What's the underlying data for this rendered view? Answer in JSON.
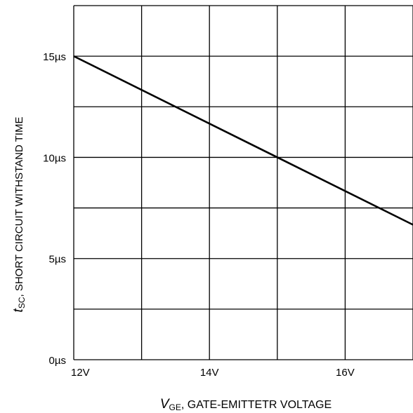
{
  "chart_data": {
    "type": "line",
    "x_axis": {
      "label_var": "V",
      "label_sub": "GE",
      "label_text": ", GATE-EMITTETR VOLTAGE",
      "range": [
        12,
        17
      ],
      "tick_labels": [
        {
          "value": 12,
          "label": "12V"
        },
        {
          "value": 14,
          "label": "14V"
        },
        {
          "value": 16,
          "label": "16V"
        }
      ],
      "grid_values": [
        12,
        13,
        14,
        15,
        16,
        17
      ]
    },
    "y_axis": {
      "label_var": "t",
      "label_sub": "SC",
      "label_text": ",  SHORT CIRCUIT WITHSTAND TIME",
      "range": [
        0,
        17.5
      ],
      "tick_labels": [
        {
          "value": 0,
          "label": "0µs"
        },
        {
          "value": 5,
          "label": "5µs"
        },
        {
          "value": 10,
          "label": "10µs"
        },
        {
          "value": 15,
          "label": "15µs"
        }
      ],
      "grid_values": [
        0,
        2.5,
        5,
        7.5,
        10,
        12.5,
        15,
        17.5
      ]
    },
    "series": [
      {
        "x": [
          12,
          17
        ],
        "y": [
          15,
          6.67
        ]
      }
    ],
    "grid": true,
    "colors": {
      "line": "#000000",
      "grid": "#000000",
      "background": "#ffffff"
    }
  }
}
